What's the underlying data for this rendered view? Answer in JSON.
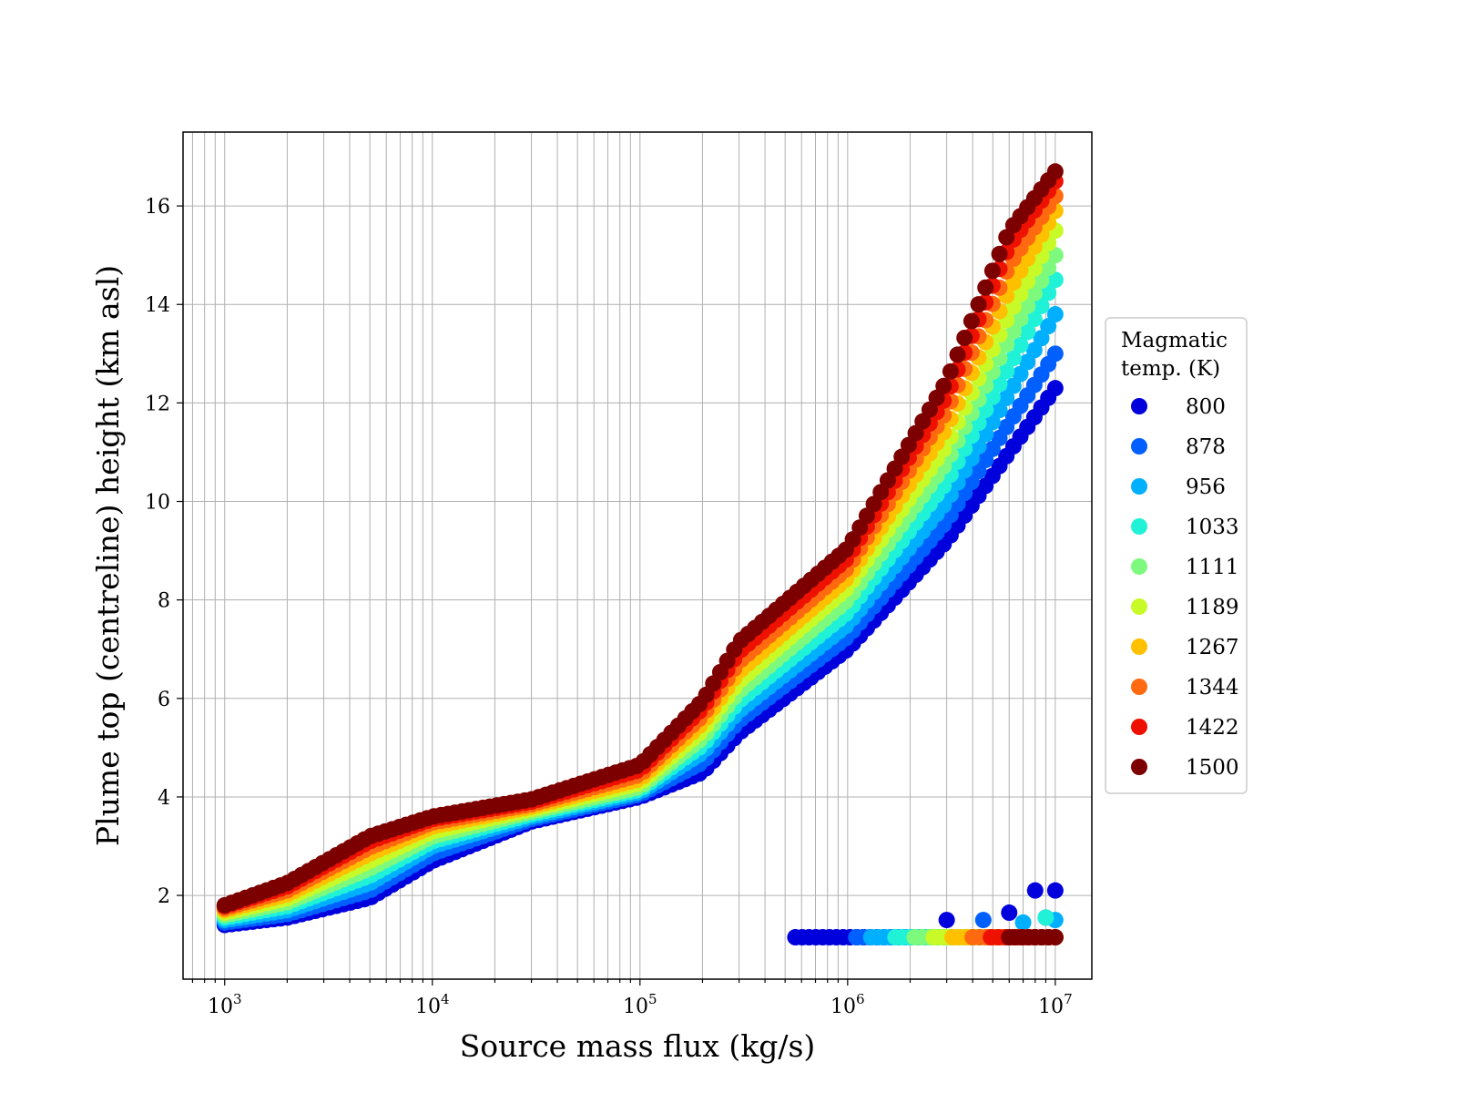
{
  "chart_data": {
    "type": "scatter",
    "xlabel": "Source mass flux (kg/s)",
    "ylabel": "Plume top (centreline) height (km asl)",
    "xscale": "log",
    "xlim": [
      630,
      15000000
    ],
    "ylim": [
      0.3,
      17.5
    ],
    "x_ticks": [
      {
        "value": 1000,
        "base": "10",
        "exp": "3"
      },
      {
        "value": 10000,
        "base": "10",
        "exp": "4"
      },
      {
        "value": 100000,
        "base": "10",
        "exp": "5"
      },
      {
        "value": 1000000,
        "base": "10",
        "exp": "6"
      },
      {
        "value": 10000000,
        "base": "10",
        "exp": "7"
      }
    ],
    "y_ticks": [
      2,
      4,
      6,
      8,
      10,
      12,
      14,
      16
    ],
    "grid": true,
    "legend": {
      "title_lines": [
        "Magmatic",
        "temp. (K)"
      ],
      "placement": "right, outside plot"
    },
    "series": [
      {
        "name": "800",
        "color": "#0000dd",
        "x": [
          1000,
          2000,
          5000,
          10000,
          30000,
          100000,
          200000,
          300000,
          1000000,
          3000000,
          6000000,
          10000000
        ],
        "top": [
          1.4,
          1.55,
          1.95,
          2.7,
          3.5,
          4.0,
          4.5,
          5.3,
          7.0,
          9.2,
          11.0,
          12.3
        ],
        "low_x": [
          560000,
          10000000
        ],
        "low_y": [
          1.15,
          1.15
        ],
        "extra": [
          {
            "x": 3000000,
            "y": 1.5
          },
          {
            "x": 6000000,
            "y": 1.65
          },
          {
            "x": 8000000,
            "y": 2.1
          },
          {
            "x": 10000000,
            "y": 2.1
          }
        ]
      },
      {
        "name": "878",
        "color": "#0060ff",
        "x": [
          1000,
          2000,
          5000,
          10000,
          30000,
          100000,
          200000,
          300000,
          1000000,
          3000000,
          6000000,
          10000000
        ],
        "top": [
          1.45,
          1.62,
          2.1,
          2.85,
          3.55,
          4.05,
          4.7,
          5.55,
          7.25,
          9.6,
          11.6,
          13.0
        ],
        "low_x": [
          1100000,
          10000000
        ],
        "low_y": [
          1.15,
          1.15
        ],
        "extra": [
          {
            "x": 4500000,
            "y": 1.5
          },
          {
            "x": 9000000,
            "y": 1.55
          }
        ]
      },
      {
        "name": "956",
        "color": "#00b0ff",
        "x": [
          1000,
          2000,
          5000,
          10000,
          30000,
          100000,
          200000,
          300000,
          1000000,
          3000000,
          6000000,
          10000000
        ],
        "top": [
          1.5,
          1.7,
          2.25,
          3.0,
          3.6,
          4.1,
          4.9,
          5.75,
          7.5,
          10.0,
          12.2,
          13.8
        ],
        "low_x": [
          1300000,
          10000000
        ],
        "low_y": [
          1.15,
          1.15
        ],
        "extra": [
          {
            "x": 7000000,
            "y": 1.45
          },
          {
            "x": 10000000,
            "y": 1.5
          }
        ]
      },
      {
        "name": "1033",
        "color": "#20f2d8",
        "x": [
          1000,
          2000,
          5000,
          10000,
          30000,
          100000,
          200000,
          300000,
          1000000,
          3000000,
          6000000,
          10000000
        ],
        "top": [
          1.55,
          1.78,
          2.4,
          3.1,
          3.65,
          4.15,
          5.05,
          5.95,
          7.75,
          10.4,
          12.75,
          14.5
        ],
        "low_x": [
          1700000,
          10000000
        ],
        "low_y": [
          1.15,
          1.15
        ],
        "extra": [
          {
            "x": 9000000,
            "y": 1.55
          }
        ]
      },
      {
        "name": "1111",
        "color": "#7dfa7d",
        "x": [
          1000,
          2000,
          5000,
          10000,
          30000,
          100000,
          200000,
          300000,
          1000000,
          3000000,
          6000000,
          10000000
        ],
        "top": [
          1.6,
          1.86,
          2.55,
          3.2,
          3.7,
          4.2,
          5.2,
          6.15,
          8.0,
          10.8,
          13.3,
          15.0
        ],
        "low_x": [
          2100000,
          10000000
        ],
        "low_y": [
          1.15,
          1.15
        ],
        "extra": []
      },
      {
        "name": "1189",
        "color": "#c8fa28",
        "x": [
          1000,
          2000,
          5000,
          10000,
          30000,
          100000,
          200000,
          300000,
          1000000,
          3000000,
          6000000,
          10000000
        ],
        "top": [
          1.65,
          1.94,
          2.7,
          3.3,
          3.75,
          4.28,
          5.35,
          6.35,
          8.25,
          11.15,
          13.8,
          15.5
        ],
        "low_x": [
          2600000,
          10000000
        ],
        "low_y": [
          1.15,
          1.15
        ],
        "extra": []
      },
      {
        "name": "1267",
        "color": "#ffc000",
        "x": [
          1000,
          2000,
          5000,
          10000,
          30000,
          100000,
          200000,
          300000,
          1000000,
          3000000,
          6000000,
          10000000
        ],
        "top": [
          1.7,
          2.02,
          2.85,
          3.4,
          3.8,
          4.36,
          5.5,
          6.55,
          8.45,
          11.5,
          14.3,
          15.9
        ],
        "low_x": [
          3200000,
          10000000
        ],
        "low_y": [
          1.15,
          1.15
        ],
        "extra": []
      },
      {
        "name": "1344",
        "color": "#ff6a10",
        "x": [
          1000,
          2000,
          5000,
          10000,
          30000,
          100000,
          200000,
          300000,
          1000000,
          3000000,
          6000000,
          10000000
        ],
        "top": [
          1.74,
          2.1,
          2.98,
          3.48,
          3.85,
          4.45,
          5.65,
          6.75,
          8.65,
          11.85,
          14.8,
          16.2
        ],
        "low_x": [
          4000000,
          10000000
        ],
        "low_y": [
          1.15,
          1.15
        ],
        "extra": []
      },
      {
        "name": "1422",
        "color": "#ee1100",
        "x": [
          1000,
          2000,
          5000,
          10000,
          30000,
          100000,
          200000,
          300000,
          1000000,
          3000000,
          6000000,
          10000000
        ],
        "top": [
          1.78,
          2.18,
          3.1,
          3.55,
          3.9,
          4.55,
          5.8,
          6.95,
          8.85,
          12.15,
          15.2,
          16.5
        ],
        "low_x": [
          4900000,
          10000000
        ],
        "low_y": [
          1.15,
          1.15
        ],
        "extra": []
      },
      {
        "name": "1500",
        "color": "#7d0000",
        "x": [
          1000,
          2000,
          5000,
          10000,
          30000,
          100000,
          200000,
          300000,
          1000000,
          3000000,
          6000000,
          10000000
        ],
        "top": [
          1.8,
          2.25,
          3.2,
          3.6,
          3.95,
          4.65,
          5.95,
          7.15,
          9.05,
          12.45,
          15.5,
          16.7
        ],
        "low_x": [
          6000000,
          10000000
        ],
        "low_y": [
          1.15,
          1.15
        ],
        "extra": []
      }
    ]
  }
}
